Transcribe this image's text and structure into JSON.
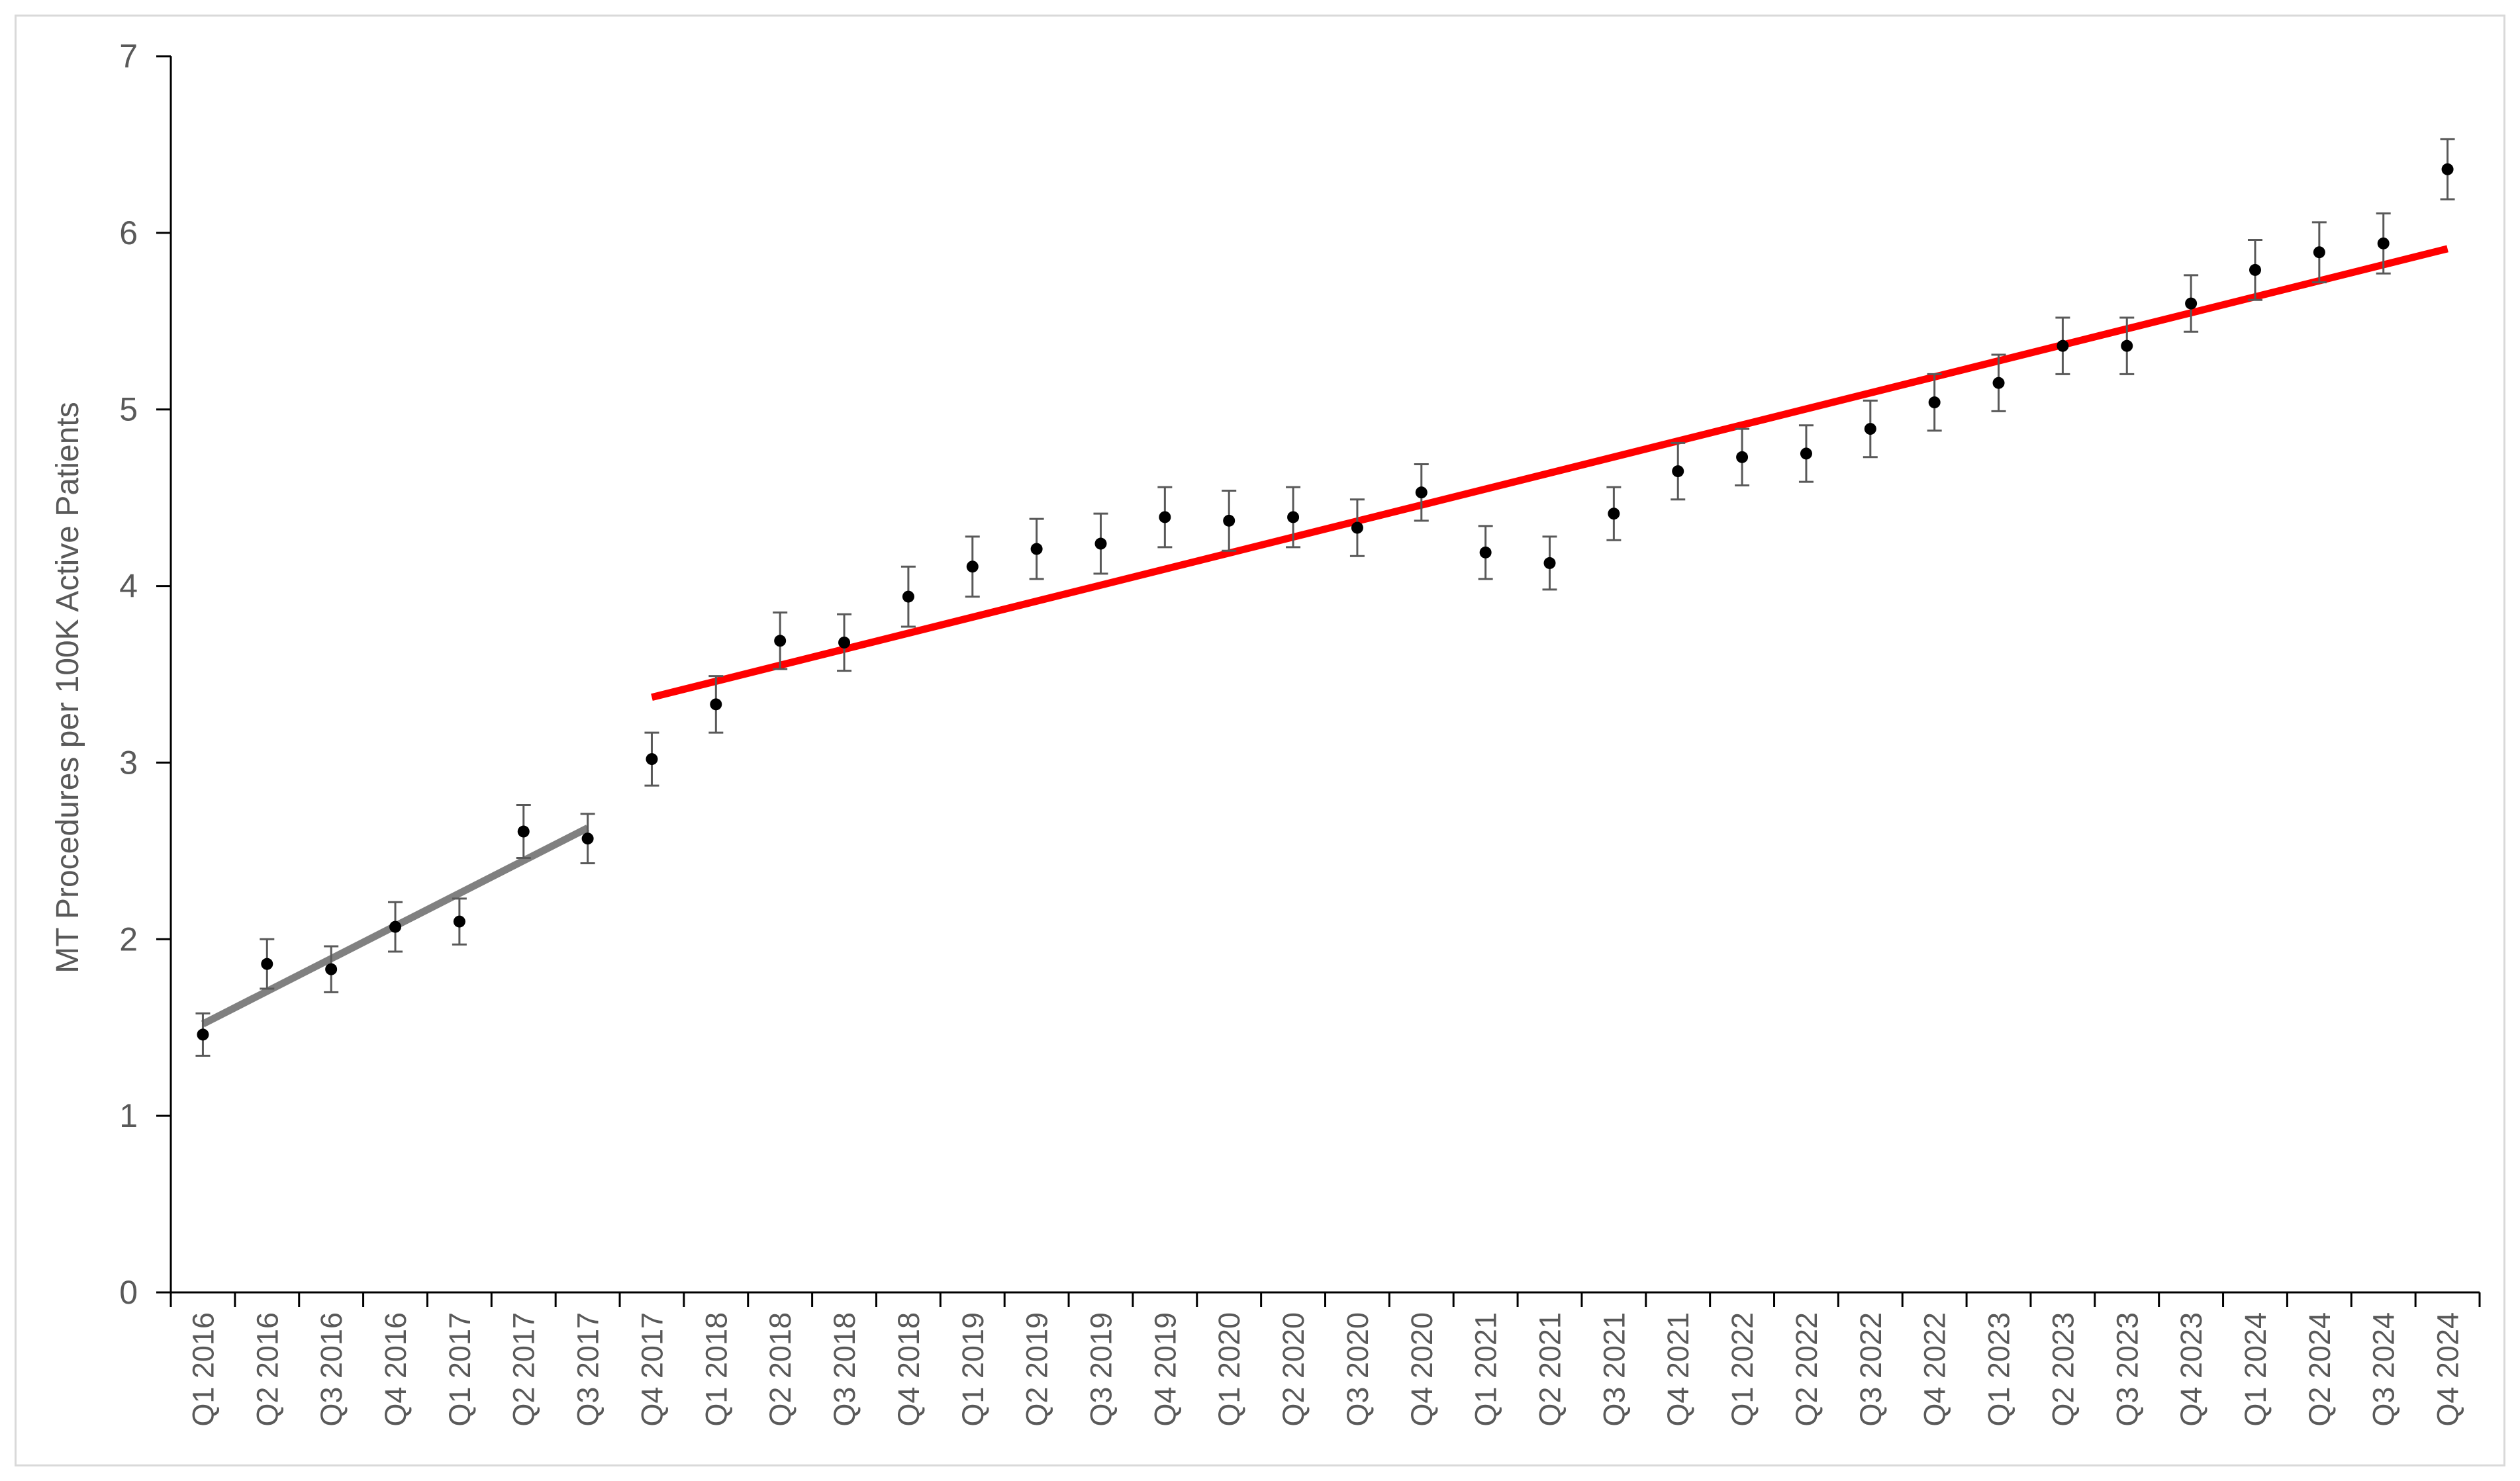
{
  "chart_data": {
    "type": "scatter",
    "title": "",
    "xlabel": "",
    "ylabel": "MT Procedures per 100K Active Patients",
    "ylim": [
      0,
      7
    ],
    "yticks": [
      0,
      1,
      2,
      3,
      4,
      5,
      6,
      7
    ],
    "grid": false,
    "legend": "none",
    "categories": [
      "Q1 2016",
      "Q2 2016",
      "Q3 2016",
      "Q4 2016",
      "Q1 2017",
      "Q2 2017",
      "Q3 2017",
      "Q4 2017",
      "Q1 2018",
      "Q2 2018",
      "Q3 2018",
      "Q4 2018",
      "Q1 2019",
      "Q2 2019",
      "Q3 2019",
      "Q4 2019",
      "Q1 2020",
      "Q2 2020",
      "Q3 2020",
      "Q4 2020",
      "Q1 2021",
      "Q2 2021",
      "Q3 2021",
      "Q4 2021",
      "Q1 2022",
      "Q2 2022",
      "Q3 2022",
      "Q4 2022",
      "Q1 2023",
      "Q2 2023",
      "Q3 2023",
      "Q4 2023",
      "Q1 2024",
      "Q2 2024",
      "Q3 2024",
      "Q4 2024"
    ],
    "series": [
      {
        "values": [
          1.46,
          1.86,
          1.83,
          2.07,
          2.1,
          2.61,
          2.57,
          3.02,
          3.33,
          3.69,
          3.68,
          3.94,
          4.11,
          4.21,
          4.24,
          4.39,
          4.37,
          4.39,
          4.33,
          4.53,
          4.19,
          4.13,
          4.41,
          4.65,
          4.73,
          4.75,
          4.89,
          5.04,
          5.15,
          5.36,
          5.36,
          5.6,
          5.79,
          5.89,
          5.94,
          6.36
        ],
        "error": [
          0.12,
          0.14,
          0.13,
          0.14,
          0.13,
          0.15,
          0.14,
          0.15,
          0.16,
          0.16,
          0.16,
          0.17,
          0.17,
          0.17,
          0.17,
          0.17,
          0.17,
          0.17,
          0.16,
          0.16,
          0.15,
          0.15,
          0.15,
          0.16,
          0.16,
          0.16,
          0.16,
          0.16,
          0.16,
          0.16,
          0.16,
          0.16,
          0.17,
          0.17,
          0.17,
          0.17
        ],
        "marker_color": "#000000",
        "errorbar_color": "#595959"
      }
    ],
    "trendlines": [
      {
        "from_index": 0,
        "to_index": 6,
        "y_start": 1.52,
        "y_end": 2.63,
        "color": "#808080"
      },
      {
        "from_index": 7,
        "to_index": 35,
        "y_start": 3.37,
        "y_end": 5.91,
        "color": "#ff0000"
      }
    ],
    "colors": {
      "axis": "#000000",
      "tick_text": "#595959",
      "frame": "#d9d9d9"
    }
  }
}
